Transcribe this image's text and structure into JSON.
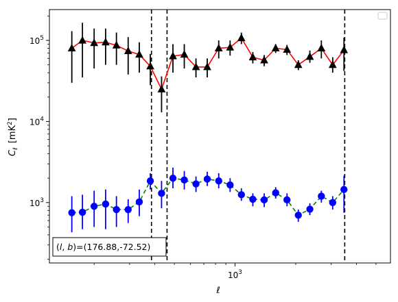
{
  "chart_data": {
    "type": "scatter",
    "xscale": "log",
    "yscale": "log",
    "xlim": [
      120,
      5900
    ],
    "ylim": [
      180,
      240000
    ],
    "xlabel": "ℓ",
    "ylabel_main": "C",
    "ylabel_sub": "ℓ",
    "ylabel_unit": "[mK",
    "ylabel_unit_sup": "2",
    "ylabel_unit_close": "]",
    "x_ticks": [
      {
        "value": 1000,
        "base": "10",
        "exp": "3"
      }
    ],
    "y_ticks": [
      {
        "value": 1000,
        "base": "10",
        "exp": "3"
      },
      {
        "value": 10000,
        "base": "10",
        "exp": "4"
      },
      {
        "value": 100000,
        "base": "10",
        "exp": "5"
      }
    ],
    "legend_placement": "top-right",
    "annotation": "(l, b)=(176.88,-72.52)",
    "annotation_parts": {
      "open": "(",
      "l": "l",
      "sep": ", ",
      "b": "b",
      "mid": ")=",
      "value": "(176.88,-72.52)"
    },
    "vlines": [
      385,
      460,
      3500
    ],
    "series": [
      {
        "color": "#ff0000",
        "marker_color": "#000000",
        "marker": "triangle",
        "linestyle": "solid",
        "points": [
          {
            "x": 155,
            "y": 80000,
            "lo": 30000,
            "hi": 130000
          },
          {
            "x": 175,
            "y": 100000,
            "lo": 35000,
            "hi": 165000
          },
          {
            "x": 200,
            "y": 93000,
            "lo": 45000,
            "hi": 140000
          },
          {
            "x": 228,
            "y": 95000,
            "lo": 50000,
            "hi": 140000
          },
          {
            "x": 258,
            "y": 87000,
            "lo": 50000,
            "hi": 125000
          },
          {
            "x": 295,
            "y": 74000,
            "lo": 38000,
            "hi": 110000
          },
          {
            "x": 335,
            "y": 67000,
            "lo": 40000,
            "hi": 95000
          },
          {
            "x": 380,
            "y": 48000,
            "lo": 28000,
            "hi": 68000
          },
          {
            "x": 432,
            "y": 25000,
            "lo": 13000,
            "hi": 36000
          },
          {
            "x": 492,
            "y": 64000,
            "lo": 40000,
            "hi": 90000
          },
          {
            "x": 560,
            "y": 67000,
            "lo": 45000,
            "hi": 90000
          },
          {
            "x": 640,
            "y": 47000,
            "lo": 35000,
            "hi": 60000
          },
          {
            "x": 728,
            "y": 47000,
            "lo": 35000,
            "hi": 60000
          },
          {
            "x": 830,
            "y": 80000,
            "lo": 60000,
            "hi": 100000
          },
          {
            "x": 945,
            "y": 82000,
            "lo": 65000,
            "hi": 100000
          },
          {
            "x": 1075,
            "y": 107000,
            "lo": 90000,
            "hi": 125000
          },
          {
            "x": 1225,
            "y": 62000,
            "lo": 52000,
            "hi": 72000
          },
          {
            "x": 1395,
            "y": 57000,
            "lo": 48000,
            "hi": 66000
          },
          {
            "x": 1590,
            "y": 80000,
            "lo": 70000,
            "hi": 90000
          },
          {
            "x": 1810,
            "y": 77000,
            "lo": 66000,
            "hi": 88000
          },
          {
            "x": 2060,
            "y": 50000,
            "lo": 43000,
            "hi": 57000
          },
          {
            "x": 2350,
            "y": 63000,
            "lo": 53000,
            "hi": 75000
          },
          {
            "x": 2680,
            "y": 80000,
            "lo": 60000,
            "hi": 100000
          },
          {
            "x": 3050,
            "y": 50000,
            "lo": 40000,
            "hi": 62000
          },
          {
            "x": 3470,
            "y": 76000,
            "lo": 42000,
            "hi": 108000
          }
        ]
      },
      {
        "color": "#008000",
        "marker_color": "#0000ff",
        "marker": "circle",
        "linestyle": "dashed",
        "points": [
          {
            "x": 155,
            "y": 750,
            "lo": 430,
            "hi": 1200
          },
          {
            "x": 175,
            "y": 760,
            "lo": 470,
            "hi": 1250
          },
          {
            "x": 200,
            "y": 900,
            "lo": 500,
            "hi": 1400
          },
          {
            "x": 228,
            "y": 960,
            "lo": 470,
            "hi": 1450
          },
          {
            "x": 258,
            "y": 820,
            "lo": 500,
            "hi": 1200
          },
          {
            "x": 295,
            "y": 820,
            "lo": 560,
            "hi": 1100
          },
          {
            "x": 335,
            "y": 1020,
            "lo": 680,
            "hi": 1450
          },
          {
            "x": 380,
            "y": 1850,
            "lo": 1450,
            "hi": 2300
          },
          {
            "x": 432,
            "y": 1300,
            "lo": 850,
            "hi": 1850
          },
          {
            "x": 492,
            "y": 2000,
            "lo": 1500,
            "hi": 2700
          },
          {
            "x": 560,
            "y": 1900,
            "lo": 1450,
            "hi": 2450
          },
          {
            "x": 640,
            "y": 1700,
            "lo": 1350,
            "hi": 2100
          },
          {
            "x": 728,
            "y": 1950,
            "lo": 1600,
            "hi": 2400
          },
          {
            "x": 830,
            "y": 1850,
            "lo": 1500,
            "hi": 2300
          },
          {
            "x": 945,
            "y": 1650,
            "lo": 1350,
            "hi": 2000
          },
          {
            "x": 1075,
            "y": 1250,
            "lo": 1050,
            "hi": 1500
          },
          {
            "x": 1225,
            "y": 1100,
            "lo": 900,
            "hi": 1300
          },
          {
            "x": 1395,
            "y": 1080,
            "lo": 880,
            "hi": 1300
          },
          {
            "x": 1590,
            "y": 1320,
            "lo": 1120,
            "hi": 1550
          },
          {
            "x": 1810,
            "y": 1080,
            "lo": 900,
            "hi": 1300
          },
          {
            "x": 2060,
            "y": 700,
            "lo": 580,
            "hi": 820
          },
          {
            "x": 2350,
            "y": 830,
            "lo": 700,
            "hi": 980
          },
          {
            "x": 2680,
            "y": 1200,
            "lo": 1000,
            "hi": 1400
          },
          {
            "x": 3050,
            "y": 1000,
            "lo": 820,
            "hi": 1200
          },
          {
            "x": 3470,
            "y": 1450,
            "lo": 750,
            "hi": 2150
          }
        ]
      }
    ]
  }
}
